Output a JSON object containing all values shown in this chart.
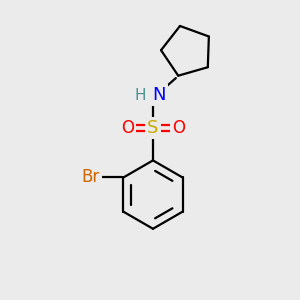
{
  "background_color": "#ebebeb",
  "atom_colors": {
    "C": "#000000",
    "H": "#4a9090",
    "N": "#0000ff",
    "O": "#ff0000",
    "S": "#ccaa00",
    "Br": "#cc6600"
  },
  "bond_color": "#000000",
  "bond_width": 1.6,
  "figsize": [
    3.0,
    3.0
  ],
  "dpi": 100,
  "xlim": [
    0,
    10
  ],
  "ylim": [
    0,
    10
  ]
}
